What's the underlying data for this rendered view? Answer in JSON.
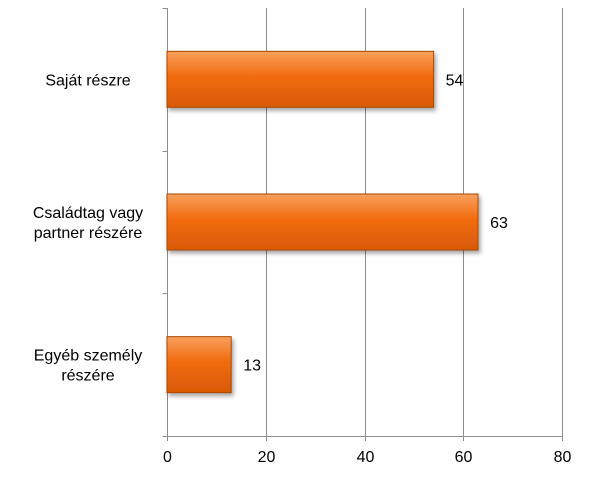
{
  "chart_data": {
    "type": "bar",
    "orientation": "horizontal",
    "categories": [
      [
        "Saját részre"
      ],
      [
        "Családtag vagy",
        "partner részére"
      ],
      [
        "Egyéb személy",
        "részére"
      ]
    ],
    "values": [
      54,
      63,
      13
    ],
    "data_labels": [
      "54",
      "63",
      "13"
    ],
    "xlim": [
      0,
      80
    ],
    "xticks": [
      0,
      20,
      40,
      60,
      80
    ],
    "xtick_labels": [
      "0",
      "20",
      "40",
      "60",
      "80"
    ],
    "grid": "vertical",
    "legend": "none",
    "colors": {
      "bar_fill": "#F26B0F",
      "bar_fill_light": "#F8A05C",
      "bar_fill_dark": "#D85A05",
      "bar_edge": "#A84600",
      "grid": "#8c8c8c",
      "text": "#000000"
    }
  }
}
